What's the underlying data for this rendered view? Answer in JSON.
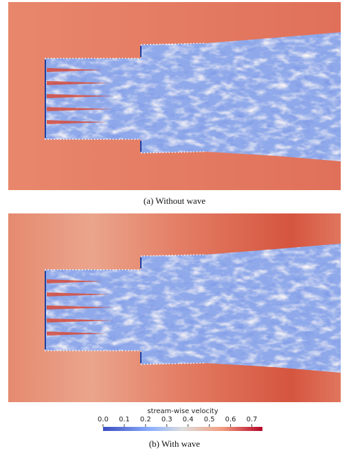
{
  "figure": {
    "panels": [
      {
        "caption": "(a) Without wave"
      },
      {
        "caption": "(b) With wave"
      }
    ],
    "colorbar": {
      "title": "stream-wise velocity",
      "range": [
        0,
        0.75
      ],
      "ticks": [
        {
          "value": 0,
          "label": "0.0"
        },
        {
          "value": 0.1,
          "label": "0.1"
        },
        {
          "value": 0.2,
          "label": "0.2"
        },
        {
          "value": 0.3,
          "label": "0.3"
        },
        {
          "value": 0.4,
          "label": "0.4"
        },
        {
          "value": 0.5,
          "label": "0.5"
        },
        {
          "value": 0.6,
          "label": "0.6"
        },
        {
          "value": 0.7,
          "label": "0.7"
        }
      ]
    }
  }
}
